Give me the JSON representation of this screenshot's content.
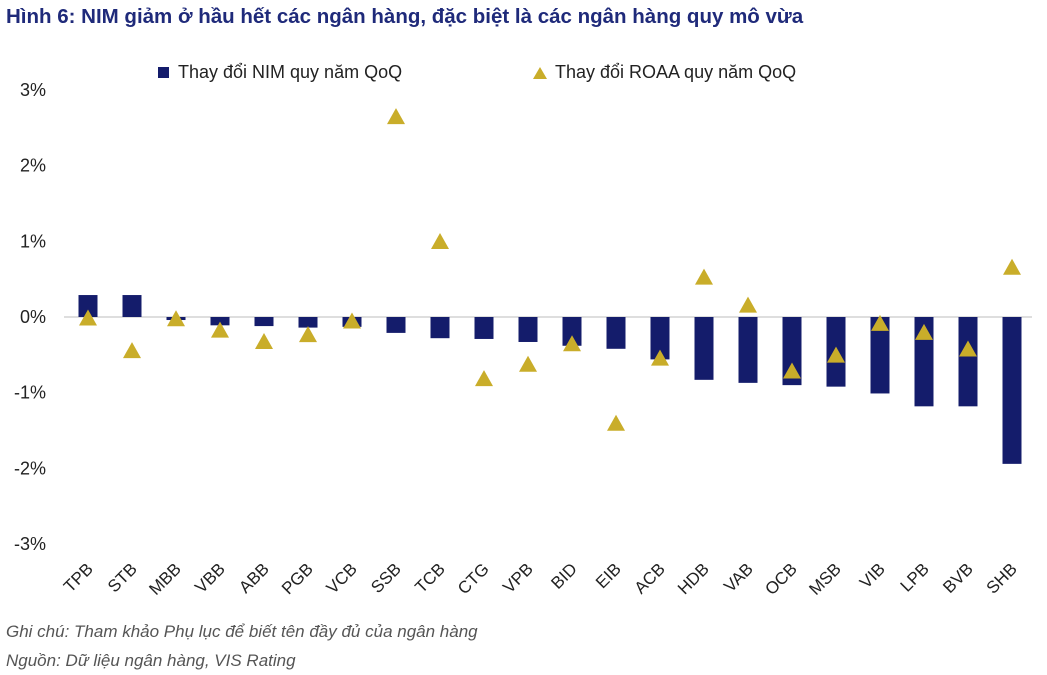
{
  "title": "Hình 6: NIM giảm ở hầu hết các ngân hàng, đặc biệt là các ngân hàng quy mô vừa",
  "colors": {
    "title": "#1f2a7a",
    "nim_bar": "#141c6b",
    "roaa_marker": "#c9ad2a"
  },
  "chart_data": {
    "type": "bar",
    "title": "",
    "xlabel": "",
    "ylabel": "",
    "ylim": [
      -3,
      3
    ],
    "yticks": [
      "3%",
      "2%",
      "1%",
      "0%",
      "-1%",
      "-2%",
      "-3%"
    ],
    "ytick_values": [
      3,
      2,
      1,
      0,
      -1,
      -2,
      -3
    ],
    "grid": false,
    "legend_position": "top",
    "categories": [
      "TPB",
      "STB",
      "MBB",
      "VBB",
      "ABB",
      "PGB",
      "VCB",
      "SSB",
      "TCB",
      "CTG",
      "VPB",
      "BID",
      "EIB",
      "ACB",
      "HDB",
      "VAB",
      "OCB",
      "MSB",
      "VIB",
      "LPB",
      "BVB",
      "SHB"
    ],
    "series": [
      {
        "name": "Thay đổi NIM quy năm QoQ",
        "marker": "bar",
        "values": [
          0.29,
          0.29,
          -0.04,
          -0.11,
          -0.12,
          -0.14,
          -0.13,
          -0.21,
          -0.28,
          -0.29,
          -0.33,
          -0.38,
          -0.42,
          -0.56,
          -0.83,
          -0.87,
          -0.9,
          -0.92,
          -1.01,
          -1.18,
          -1.18,
          -1.94
        ]
      },
      {
        "name": "Thay đổi ROAA quy năm QoQ",
        "marker": "triangle",
        "values": [
          -0.02,
          -0.45,
          -0.03,
          -0.18,
          -0.33,
          -0.24,
          -0.06,
          2.64,
          0.99,
          -0.82,
          -0.63,
          -0.36,
          -1.41,
          -0.55,
          0.52,
          0.15,
          -0.72,
          -0.51,
          -0.09,
          -0.21,
          -0.43,
          0.65
        ]
      }
    ]
  },
  "footnotes": {
    "note": "Ghi chú: Tham khảo Phụ lục để biết tên đầy đủ của ngân hàng",
    "source": "Nguồn: Dữ liệu ngân hàng, VIS Rating"
  }
}
